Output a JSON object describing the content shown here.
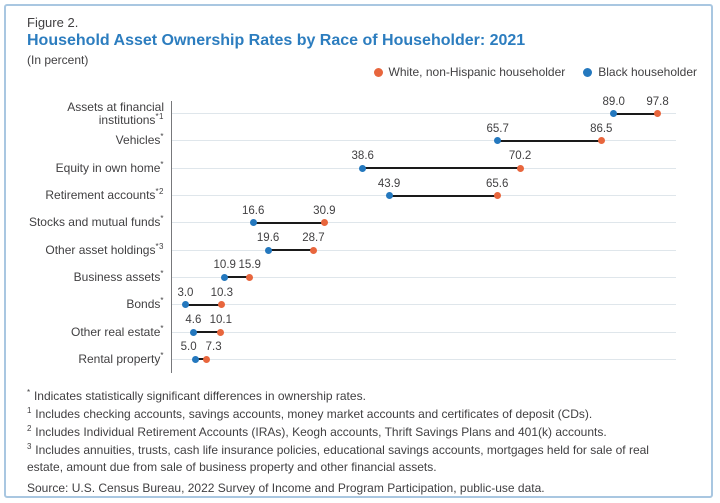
{
  "figure": {
    "label": "Figure 2.",
    "title": "Household Asset Ownership Rates by Race of Householder: 2021",
    "subtitle": "(In percent)"
  },
  "colors": {
    "title": "#2c7dbf",
    "text": "#414042",
    "border": "#a9c7e1",
    "gridline": "#dfe6eb",
    "axis": "#77787b",
    "connector": "#1a1a1a",
    "white_series": "#e8663d",
    "black_series": "#2478be"
  },
  "chart_data": {
    "type": "dumbbell",
    "orientation": "horizontal",
    "title": "Household Asset Ownership Rates by Race of Householder: 2021",
    "units": "percent",
    "xlabel": "",
    "ylabel": "",
    "xlim": [
      0,
      100
    ],
    "grid": "light horizontal line per category row",
    "legend_position": "top-right",
    "value_labels": "above each dot, one decimal",
    "categories": [
      {
        "label": "Assets at financial institutions",
        "marker": "*1"
      },
      {
        "label": "Vehicles",
        "marker": "*"
      },
      {
        "label": "Equity in own home",
        "marker": "*"
      },
      {
        "label": "Retirement accounts",
        "marker": "*2"
      },
      {
        "label": "Stocks and mutual funds",
        "marker": "*"
      },
      {
        "label": "Other asset holdings",
        "marker": "*3"
      },
      {
        "label": "Business assets",
        "marker": "*"
      },
      {
        "label": "Bonds",
        "marker": "*"
      },
      {
        "label": "Other real estate",
        "marker": "*"
      },
      {
        "label": "Rental property",
        "marker": "*"
      }
    ],
    "series": [
      {
        "name": "White, non-Hispanic householder",
        "color": "#e8663d",
        "values": [
          97.8,
          86.5,
          70.2,
          65.6,
          30.9,
          28.7,
          15.9,
          10.3,
          10.1,
          7.3
        ]
      },
      {
        "name": "Black householder",
        "color": "#2478be",
        "values": [
          89.0,
          65.7,
          38.6,
          43.9,
          16.6,
          19.6,
          10.9,
          3.0,
          4.6,
          5.0
        ]
      }
    ]
  },
  "footnotes": [
    {
      "marker": "*",
      "text": "Indicates statistically significant differences in ownership rates."
    },
    {
      "marker": "1",
      "text": "Includes checking accounts, savings accounts, money market accounts and certificates of deposit (CDs)."
    },
    {
      "marker": "2",
      "text": "Includes Individual Retirement Accounts (IRAs), Keogh accounts, Thrift Savings Plans and 401(k) accounts."
    },
    {
      "marker": "3",
      "text": "Includes annuities, trusts, cash life insurance policies, educational savings accounts, mortgages held for sale of real estate, amount due from sale of business property and other financial assets."
    }
  ],
  "source": "Source: U.S. Census Bureau, 2022 Survey of Income and Program Participation, public-use data."
}
